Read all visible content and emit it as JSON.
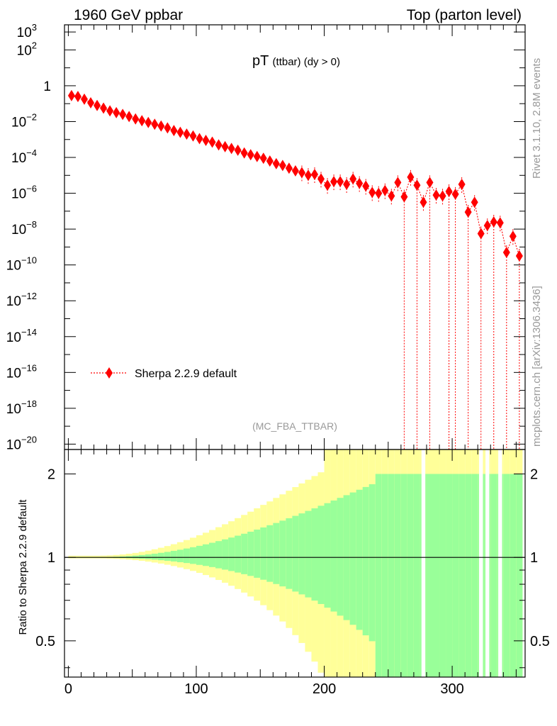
{
  "header": {
    "left_title": "1960 GeV ppbar",
    "right_title": "Top (parton level)"
  },
  "side_labels": {
    "rivet": "Rivet 3.1.10,  2.8M events",
    "source": "mcplots.cern.ch [arXiv:1306.3436]"
  },
  "analysis_tag": "(MC_FBA_TTBAR)",
  "chart_data": [
    {
      "type": "scatter",
      "panel": "main",
      "title_main": "pT",
      "title_sub": "(ttbar) (dy > 0)",
      "yscale": "log",
      "ylim_exponent": [
        -20.3,
        3.4
      ],
      "xlim": [
        -3,
        357
      ],
      "ytick_labels": [
        {
          "exp": 3,
          "base": "10",
          "sup": "3"
        },
        {
          "exp": 2,
          "base": "10",
          "sup": "2"
        },
        {
          "exp": 0,
          "base": "1",
          "sup": ""
        },
        {
          "exp": -2,
          "base": "10",
          "sup": "−2"
        },
        {
          "exp": -4,
          "base": "10",
          "sup": "−4"
        },
        {
          "exp": -6,
          "base": "10",
          "sup": "−6"
        },
        {
          "exp": -8,
          "base": "10",
          "sup": "−8"
        },
        {
          "exp": -10,
          "base": "10",
          "sup": "−10"
        },
        {
          "exp": -12,
          "base": "10",
          "sup": "−12"
        },
        {
          "exp": -14,
          "base": "10",
          "sup": "−14"
        },
        {
          "exp": -16,
          "base": "10",
          "sup": "−16"
        },
        {
          "exp": -18,
          "base": "10",
          "sup": "−18"
        },
        {
          "exp": -20,
          "base": "10",
          "sup": "−20"
        }
      ],
      "legend_placement": "lower-left",
      "series": [
        {
          "name": "Sherpa 2.2.9 default",
          "color": "#ff0000",
          "marker": "diamond",
          "line": "dotted",
          "x": [
            2.5,
            7.5,
            12.5,
            17.5,
            22.5,
            27.5,
            32.5,
            37.5,
            42.5,
            47.5,
            52.5,
            57.5,
            62.5,
            67.5,
            72.5,
            77.5,
            82.5,
            87.5,
            92.5,
            97.5,
            102.5,
            107.5,
            112.5,
            117.5,
            122.5,
            127.5,
            132.5,
            137.5,
            142.5,
            147.5,
            152.5,
            157.5,
            162.5,
            167.5,
            172.5,
            177.5,
            182.5,
            187.5,
            192.5,
            197.5,
            202.5,
            207.5,
            212.5,
            217.5,
            222.5,
            227.5,
            232.5,
            237.5,
            242.5,
            247.5,
            252.5,
            257.5,
            262.5,
            267.5,
            272.5,
            277.5,
            282.5,
            287.5,
            292.5,
            297.5,
            302.5,
            307.5,
            312.5,
            317.5,
            322.5,
            327.5,
            332.5,
            337.5,
            342.5,
            347.5,
            352.5
          ],
          "log10_y": [
            -0.55,
            -0.6,
            -0.75,
            -0.95,
            -1.1,
            -1.25,
            -1.4,
            -1.5,
            -1.6,
            -1.72,
            -1.85,
            -1.95,
            -2.05,
            -2.15,
            -2.25,
            -2.35,
            -2.5,
            -2.6,
            -2.7,
            -2.8,
            -2.95,
            -3.05,
            -3.15,
            -3.3,
            -3.4,
            -3.5,
            -3.6,
            -3.75,
            -3.85,
            -3.95,
            -4.05,
            -4.2,
            -4.35,
            -4.45,
            -4.6,
            -4.75,
            -4.85,
            -5.0,
            -4.95,
            -5.2,
            -5.55,
            -5.35,
            -5.35,
            -5.5,
            -5.2,
            -5.45,
            -5.6,
            -5.95,
            -6.0,
            -5.85,
            -6.15,
            -5.4,
            -6.2,
            -5.1,
            -5.55,
            -6.5,
            -5.4,
            -6.1,
            -6.15,
            -5.9,
            -6.05,
            -5.5,
            -7.05,
            -6.5,
            -8.25,
            -7.8,
            -7.6,
            -7.65,
            -9.3,
            -8.4,
            -9.5
          ],
          "y_display": [
            "3e-1",
            "2.5e-1",
            "1.8e-1",
            "1.1e-1",
            "8e-2",
            "5.6e-2",
            "4e-2",
            "3.2e-2",
            "2.5e-2",
            "1.9e-2",
            "1.4e-2",
            "1.1e-2",
            "8.9e-3",
            "7.1e-3",
            "5.6e-3",
            "4.5e-3",
            "3.2e-3",
            "2.5e-3",
            "2e-3",
            "1.6e-3",
            "1.1e-3",
            "8.9e-4",
            "7.1e-4",
            "5e-4",
            "4e-4",
            "3.2e-4",
            "2.5e-4",
            "1.8e-4",
            "1.4e-4",
            "1.1e-4",
            "8.9e-5",
            "6.3e-5",
            "4.5e-5",
            "3.5e-5",
            "2.5e-5",
            "1.8e-5",
            "1.4e-5",
            "1e-5",
            "1.1e-5",
            "6.3e-6",
            "2.8e-6",
            "4.5e-6",
            "4.5e-6",
            "3.2e-6",
            "6.3e-6",
            "3.5e-6",
            "2.5e-6",
            "1.1e-6",
            "1e-6",
            "1.4e-6",
            "7.1e-7",
            "4e-6",
            "6.3e-7",
            "7.9e-6",
            "2.8e-6",
            "3.2e-7",
            "4e-6",
            "7.9e-7",
            "7.1e-7",
            "1.3e-6",
            "8.9e-7",
            "3.2e-6",
            "8.9e-8",
            "3.2e-7",
            "5.6e-9",
            "1.6e-8",
            "2.5e-8",
            "2.2e-8",
            "5e-10",
            "4e-9",
            "3.2e-10"
          ]
        }
      ]
    },
    {
      "type": "area",
      "panel": "ratio",
      "ylabel": "Ratio to Sherpa 2.2.9 default",
      "yscale": "log",
      "ylim": [
        0.37,
        2.45
      ],
      "xlim": [
        -3,
        357
      ],
      "xtick_labels": [
        "0",
        "100",
        "200",
        "300"
      ],
      "ytick_labels": [
        "0.5",
        "1",
        "2"
      ],
      "reference_line": 1,
      "bands": [
        {
          "name": "inner",
          "color": "#99ff99"
        },
        {
          "name": "outer",
          "color": "#ffff99"
        }
      ]
    }
  ]
}
